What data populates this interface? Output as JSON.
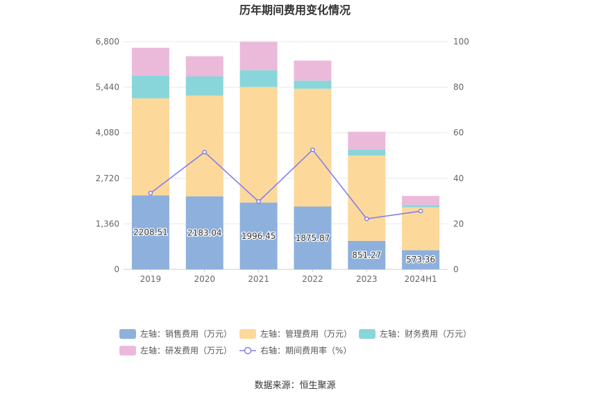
{
  "chart_data": {
    "type": "bar",
    "title": "历年期间费用变化情况",
    "source": "数据来源：恒生聚源",
    "categories": [
      "2019",
      "2020",
      "2021",
      "2022",
      "2023",
      "2024H1"
    ],
    "left_axis": {
      "min": 0,
      "max": 6800,
      "ticks": [
        "0",
        "1,360",
        "2,720",
        "4,080",
        "5,440",
        "6,800"
      ]
    },
    "right_axis": {
      "min": 0,
      "max": 100,
      "ticks": [
        "0",
        "20",
        "40",
        "60",
        "80",
        "100"
      ]
    },
    "grid": true,
    "legend_position": "bottom",
    "series": [
      {
        "name": "左轴：销售费用（万元）",
        "type": "bar",
        "axis": "left",
        "color": "#8eb0dc",
        "values": [
          2208.51,
          2183.04,
          1996.45,
          1875.87,
          851.27,
          573.36
        ],
        "labels": [
          "2208.51",
          "2183.04",
          "1996.45",
          "1875.87",
          "851.27",
          "573.36"
        ]
      },
      {
        "name": "左轴：管理费用（万元）",
        "type": "bar",
        "axis": "left",
        "color": "#fcd89b",
        "values": [
          2900,
          3010,
          3450,
          3520,
          2550,
          1280
        ]
      },
      {
        "name": "左轴：财务费用（万元）",
        "type": "bar",
        "axis": "left",
        "color": "#88d6da",
        "values": [
          680,
          570,
          500,
          240,
          180,
          70
        ]
      },
      {
        "name": "左轴：研发费用（万元）",
        "type": "bar",
        "axis": "left",
        "color": "#ebbadb",
        "values": [
          830,
          600,
          850,
          600,
          530,
          270
        ]
      },
      {
        "name": "右轴：期间费用率（%）",
        "type": "line",
        "axis": "right",
        "color": "#7f80ee",
        "values": [
          33.5,
          51.5,
          29.8,
          52.5,
          22.2,
          25.6
        ]
      }
    ]
  }
}
